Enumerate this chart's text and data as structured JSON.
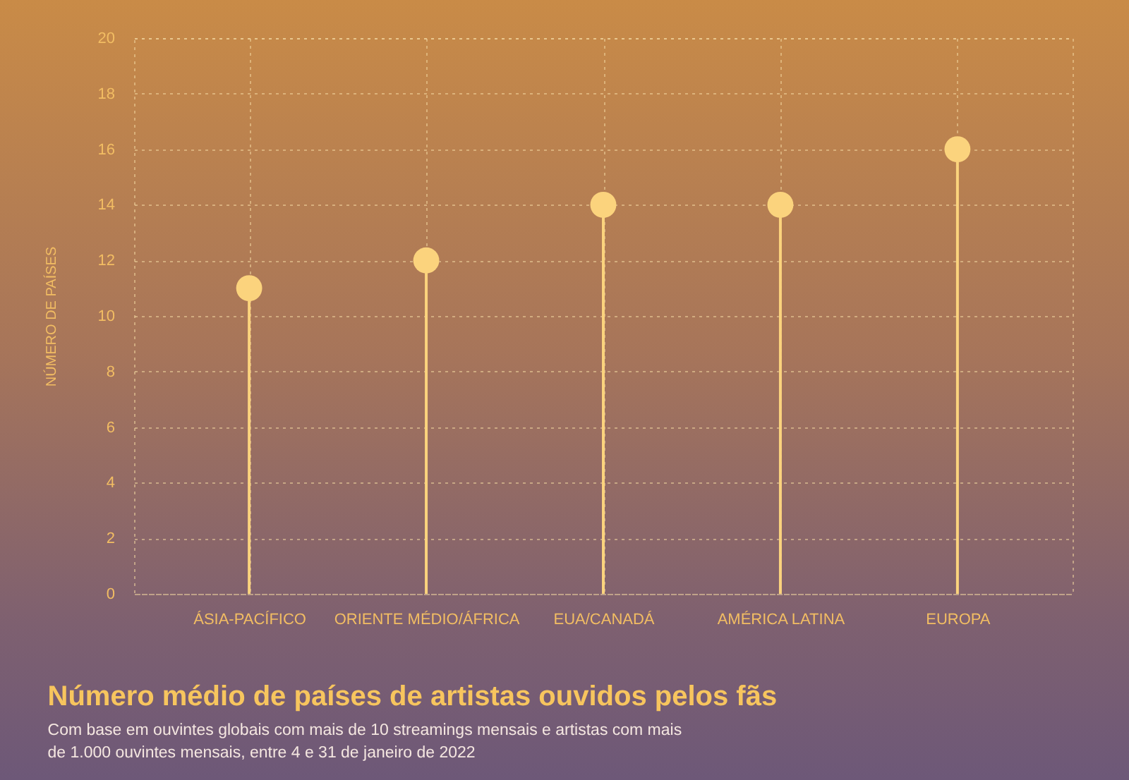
{
  "chart_data": {
    "type": "lollipop",
    "title": "Número médio de países de artistas ouvidos pelos fãs",
    "subtitle": "Com base em ouvintes globais com mais de 10 streamings mensais e artistas com mais de 1.000 ouvintes mensais, entre 4 e 31 de janeiro de 2022",
    "ylabel": "NÚMERO DE PAÍSES",
    "categories": [
      "ÁSIA-PACÍFICO",
      "ORIENTE MÉDIO/ÁFRICA",
      "EUA/CANADÁ",
      "AMÉRICA LATINA",
      "EUROPA"
    ],
    "values": [
      11,
      12,
      14,
      14,
      16
    ],
    "color": "#fbd37d",
    "ylim": [
      0,
      20
    ],
    "yticks": [
      0,
      2,
      4,
      6,
      8,
      10,
      12,
      14,
      16,
      18,
      20
    ],
    "grid": true,
    "marker": "circle"
  }
}
